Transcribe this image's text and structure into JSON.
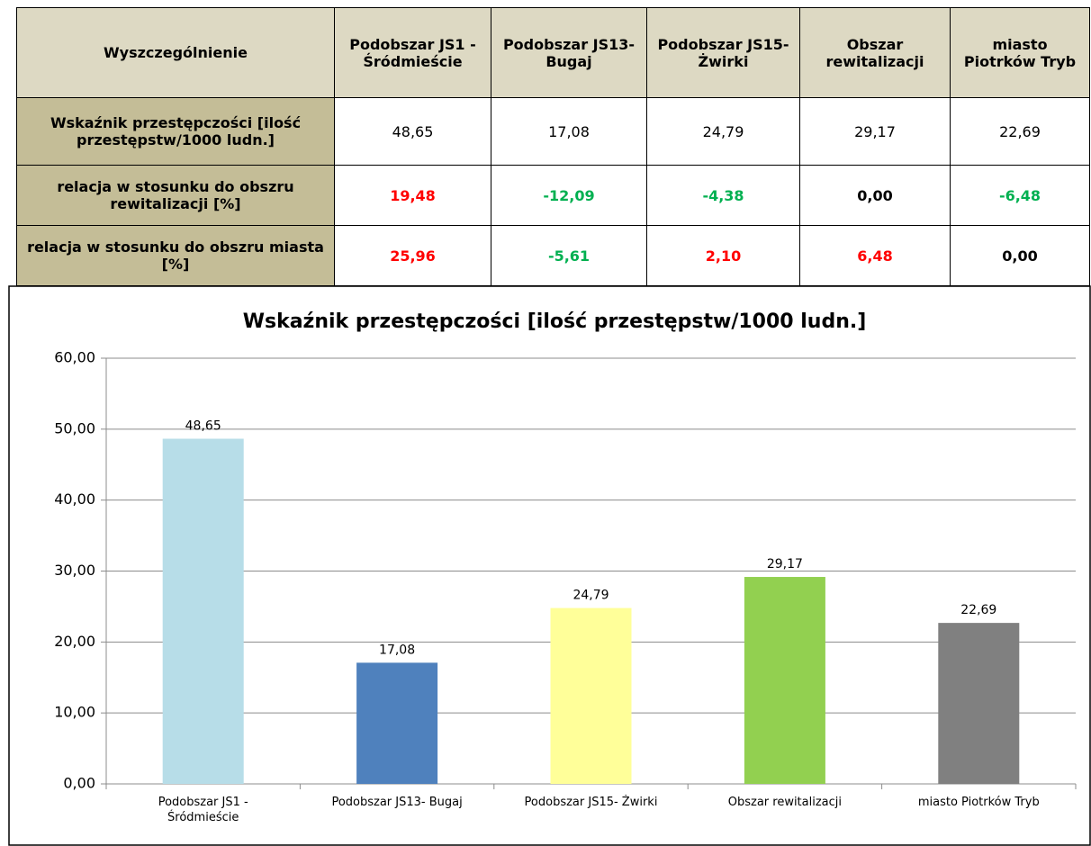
{
  "table": {
    "header": [
      "Wyszczególnienie",
      "Podobszar JS1 - Śródmieście",
      "Podobszar JS13- Bugaj",
      "Podobszar JS15- Żwirki",
      "Obszar rewitalizacji",
      "miasto Piotrków Tryb"
    ],
    "rows": [
      {
        "cells": [
          "Wskaźnik przestępczości [ilość przestępstw/1000 ludn.]",
          "48,65",
          "17,08",
          "24,79",
          "29,17",
          "22,69"
        ],
        "colors": [
          "#000000",
          "#000000",
          "#000000",
          "#000000",
          "#000000"
        ],
        "bold": false
      },
      {
        "cells": [
          "relacja w stosunku do obszru rewitalizacji [%]",
          "19,48",
          "-12,09",
          "-4,38",
          "0,00",
          "-6,48"
        ],
        "colors": [
          "#ff0000",
          "#00b050",
          "#00b050",
          "#000000",
          "#00b050"
        ],
        "bold": true
      },
      {
        "cells": [
          "relacja w stosunku do obszru miasta [%]",
          "25,96",
          "-5,61",
          "2,10",
          "6,48",
          "0,00"
        ],
        "colors": [
          "#ff0000",
          "#00b050",
          "#ff0000",
          "#ff0000",
          "#000000"
        ],
        "bold": true
      }
    ]
  },
  "chart_data": {
    "type": "bar",
    "title": "Wskaźnik przestępczości [ilość przestępstw/1000 ludn.]",
    "categories": [
      "Podobszar JS1 - Śródmieście",
      "Podobszar JS13- Bugaj",
      "Podobszar JS15- Żwirki",
      "Obszar rewitalizacji",
      "miasto Piotrków Tryb"
    ],
    "values": [
      48.65,
      17.08,
      24.79,
      29.17,
      22.69
    ],
    "value_labels": [
      "48,65",
      "17,08",
      "24,79",
      "29,17",
      "22,69"
    ],
    "colors": [
      "#b7dde8",
      "#4f81bd",
      "#ffff99",
      "#92d050",
      "#808080"
    ],
    "ylim": [
      0,
      60
    ],
    "yticks": [
      {
        "value": 0,
        "label": "0,00"
      },
      {
        "value": 10,
        "label": "10,00"
      },
      {
        "value": 20,
        "label": "20,00"
      },
      {
        "value": 30,
        "label": "30,00"
      },
      {
        "value": 40,
        "label": "40,00"
      },
      {
        "value": 50,
        "label": "50,00"
      },
      {
        "value": 60,
        "label": "60,00"
      }
    ],
    "grid": true
  }
}
